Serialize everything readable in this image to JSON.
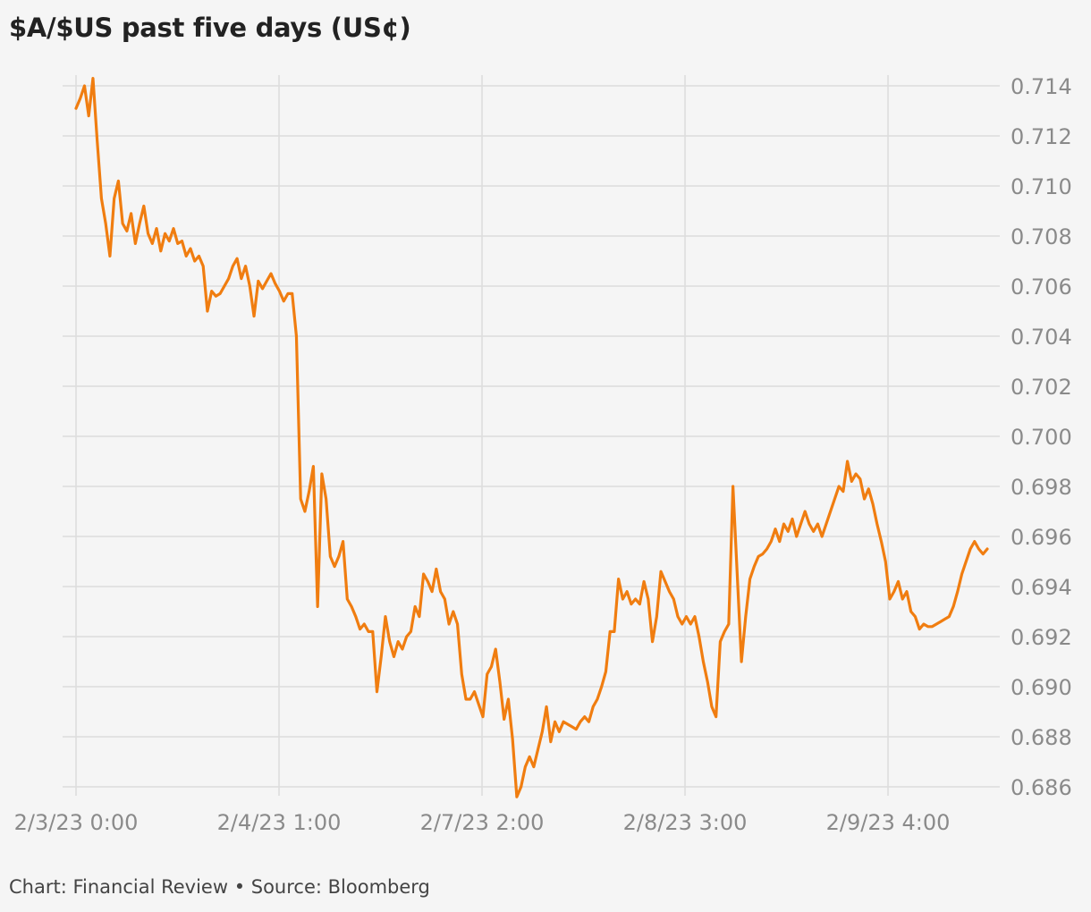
{
  "chart_data": {
    "type": "line",
    "title": "$A/$US past five days (US¢)",
    "xlabel": "",
    "ylabel": "",
    "ylim": [
      0.686,
      0.7145
    ],
    "y_ticks": [
      "0.714",
      "0.712",
      "0.710",
      "0.708",
      "0.706",
      "0.704",
      "0.702",
      "0.700",
      "0.698",
      "0.696",
      "0.694",
      "0.692",
      "0.690",
      "0.688",
      "0.686"
    ],
    "x_ticks": [
      "2/3/23 0:00",
      "2/4/23 1:00",
      "2/7/23 2:00",
      "2/8/23 3:00",
      "2/9/23 4:00"
    ],
    "grid": true,
    "line_color": "#f07d10",
    "series": [
      {
        "values": [
          0.7131,
          0.7135,
          0.714,
          0.7128,
          0.7143,
          0.7118,
          0.7095,
          0.7085,
          0.7072,
          0.7095,
          0.7102,
          0.7085,
          0.7082,
          0.7089,
          0.7077,
          0.7085,
          0.7092,
          0.7081,
          0.7077,
          0.7083,
          0.7074,
          0.7081,
          0.7078,
          0.7083,
          0.7077,
          0.7078,
          0.7072,
          0.7075,
          0.707,
          0.7072,
          0.7068,
          0.705,
          0.7058,
          0.7056,
          0.7057,
          0.706,
          0.7063,
          0.7068,
          0.7071,
          0.7063,
          0.7068,
          0.706,
          0.7048,
          0.7062,
          0.7059,
          0.7062,
          0.7065,
          0.7061,
          0.7058,
          0.7054,
          0.7057,
          0.7057,
          0.704,
          0.6975,
          0.697,
          0.6978,
          0.6988,
          0.6932,
          0.6985,
          0.6975,
          0.6952,
          0.6948,
          0.6952,
          0.6958,
          0.6935,
          0.6932,
          0.6928,
          0.6923,
          0.6925,
          0.6922,
          0.6922,
          0.6898,
          0.6912,
          0.6928,
          0.6918,
          0.6912,
          0.6918,
          0.6915,
          0.692,
          0.6922,
          0.6932,
          0.6928,
          0.6945,
          0.6942,
          0.6938,
          0.6947,
          0.6938,
          0.6935,
          0.6925,
          0.693,
          0.6925,
          0.6905,
          0.6895,
          0.6895,
          0.6898,
          0.6893,
          0.6888,
          0.6905,
          0.6908,
          0.6915,
          0.6902,
          0.6887,
          0.6895,
          0.6879,
          0.6856,
          0.686,
          0.6868,
          0.6872,
          0.6868,
          0.6875,
          0.6882,
          0.6892,
          0.6878,
          0.6886,
          0.6882,
          0.6886,
          0.6885,
          0.6884,
          0.6883,
          0.6886,
          0.6888,
          0.6886,
          0.6892,
          0.6895,
          0.69,
          0.6906,
          0.6922,
          0.6922,
          0.6943,
          0.6935,
          0.6938,
          0.6933,
          0.6935,
          0.6933,
          0.6942,
          0.6935,
          0.6918,
          0.6928,
          0.6946,
          0.6942,
          0.6938,
          0.6935,
          0.6928,
          0.6925,
          0.6928,
          0.6925,
          0.6928,
          0.692,
          0.691,
          0.6902,
          0.6892,
          0.6888,
          0.6918,
          0.6922,
          0.6925,
          0.698,
          0.6945,
          0.691,
          0.6928,
          0.6943,
          0.6948,
          0.6952,
          0.6953,
          0.6955,
          0.6958,
          0.6963,
          0.6958,
          0.6965,
          0.6962,
          0.6967,
          0.696,
          0.6965,
          0.697,
          0.6965,
          0.6962,
          0.6965,
          0.696,
          0.6965,
          0.697,
          0.6975,
          0.698,
          0.6978,
          0.699,
          0.6982,
          0.6985,
          0.6983,
          0.6975,
          0.6979,
          0.6973,
          0.6965,
          0.6958,
          0.695,
          0.6935,
          0.6938,
          0.6942,
          0.6935,
          0.6938,
          0.693,
          0.6928,
          0.6923,
          0.6925,
          0.6924,
          0.6924,
          0.6925,
          0.6926,
          0.6927,
          0.6928,
          0.6932,
          0.6938,
          0.6945,
          0.695,
          0.6955,
          0.6958,
          0.6955,
          0.6953,
          0.6955
        ]
      }
    ]
  },
  "footer": {
    "credit": "Chart: Financial Review • Source: Bloomberg"
  }
}
